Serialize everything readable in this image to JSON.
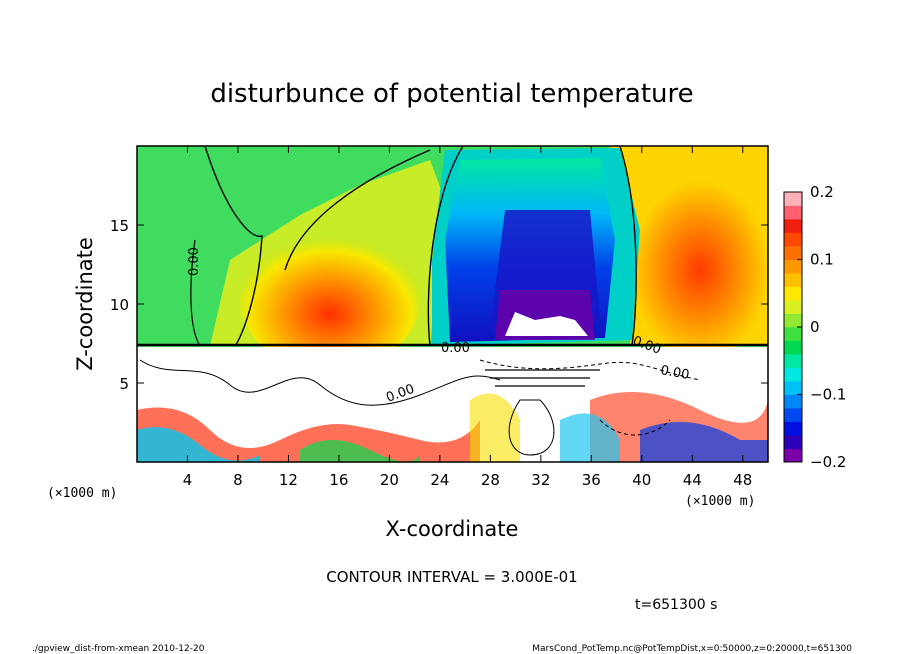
{
  "chart_data": {
    "type": "heatmap",
    "title": "disturbunce of potential temperature",
    "xlabel": "X-coordinate",
    "ylabel": "Z-coordinate",
    "x_unit_label": "(×1000 m)",
    "y_unit_label": "(×1000 m)",
    "xlim": [
      0,
      50
    ],
    "ylim": [
      0,
      20
    ],
    "x_ticks": [
      {
        "value": 4,
        "label": "4"
      },
      {
        "value": 8,
        "label": "8"
      },
      {
        "value": 12,
        "label": "12"
      },
      {
        "value": 16,
        "label": "16"
      },
      {
        "value": 20,
        "label": "20"
      },
      {
        "value": 24,
        "label": "24"
      },
      {
        "value": 28,
        "label": "28"
      },
      {
        "value": 32,
        "label": "32"
      },
      {
        "value": 36,
        "label": "36"
      },
      {
        "value": 40,
        "label": "40"
      },
      {
        "value": 44,
        "label": "44"
      },
      {
        "value": 48,
        "label": "48"
      }
    ],
    "y_ticks": [
      {
        "value": 5,
        "label": "5"
      },
      {
        "value": 10,
        "label": "10"
      },
      {
        "value": 15,
        "label": "15"
      }
    ],
    "colorbar": {
      "range": [
        -0.2,
        0.2
      ],
      "ticks": [
        {
          "value": 0.2,
          "label": "0.2"
        },
        {
          "value": 0.1,
          "label": "0.1"
        },
        {
          "value": 0,
          "label": "0"
        },
        {
          "value": -0.1,
          "label": "−0.1"
        },
        {
          "value": -0.2,
          "label": "−0.2"
        }
      ],
      "colors": [
        "#7a00a8",
        "#2a00b8",
        "#0010e0",
        "#0048f0",
        "#0088f8",
        "#00c0f8",
        "#00e8e0",
        "#00e8a0",
        "#00d850",
        "#40e040",
        "#90e830",
        "#d8f020",
        "#ffe800",
        "#ffc000",
        "#ff9800",
        "#ff7000",
        "#ff4800",
        "#f02010",
        "#ff6070",
        "#ffb0b8"
      ]
    },
    "contour_labels": [
      "0.00",
      "0.00",
      "0.00",
      "0.00",
      "0.00"
    ],
    "contour_interval_text": "CONTOUR INTERVAL = 3.000E-01",
    "time_text": "t=651300 s",
    "footer_left": "./gpview_dist-from-xmean  2010-12-20",
    "footer_right": "MarsCond_PotTemp.nc@PotTempDist,x=0:50000,z=0:20000,t=651300"
  }
}
